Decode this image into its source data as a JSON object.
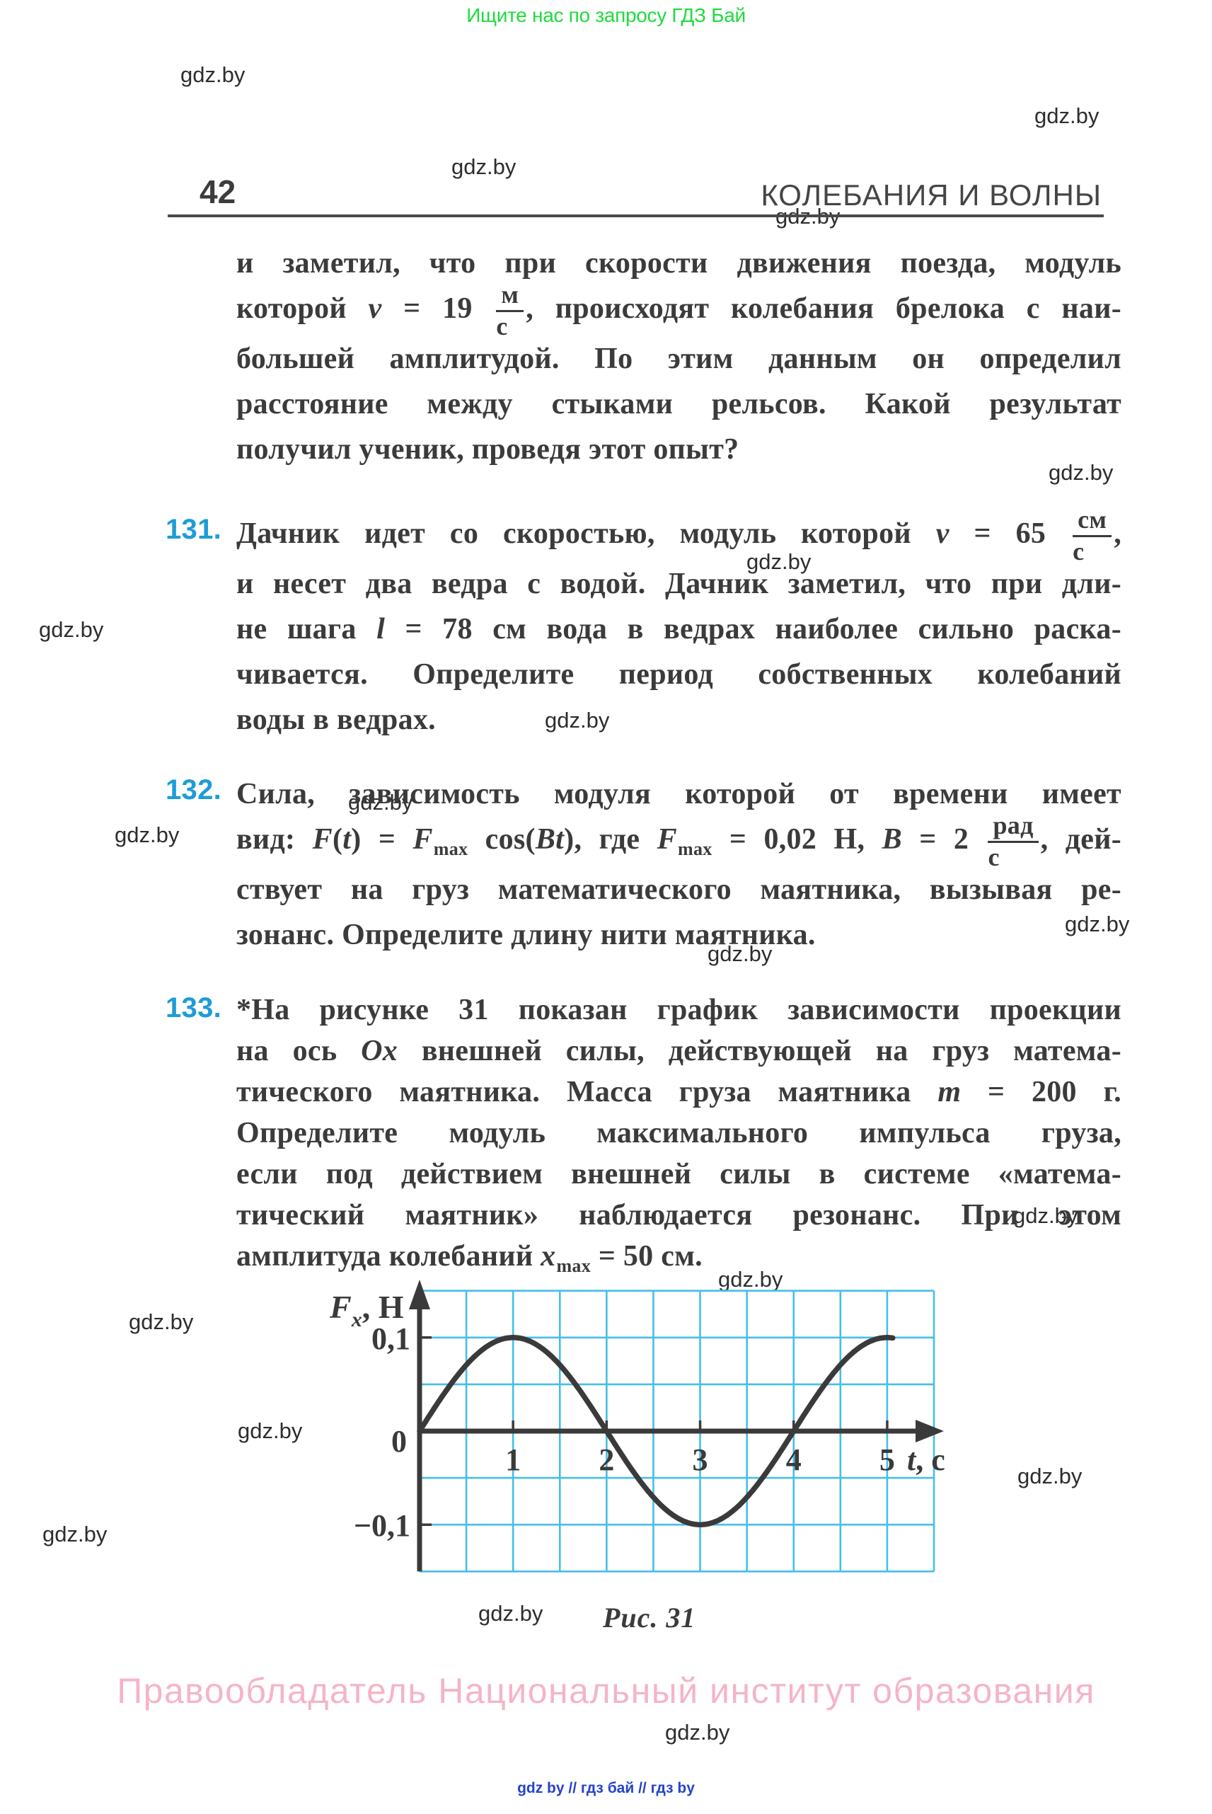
{
  "page": {
    "top_banner": "Ищите нас по запросу ГДЗ Бай",
    "page_number": "42",
    "chapter_header": "КОЛЕБАНИЯ  И ВОЛНЫ",
    "figure_caption": "Рис. 31",
    "footer_copyright": "Правообладатель Национальный институт образования",
    "footer_links": "gdz by  //  гдз бай  //  гдз by"
  },
  "watermark": {
    "text": "gdz.by"
  },
  "colors": {
    "ink": "#3b3b3b",
    "problem_number_blue": "#1e9cd8",
    "banner_green": "#1fdb3d",
    "footer_pink": "#f4b5c6",
    "links_blue": "#2443cc",
    "grid_cyan": "#45bfe8",
    "axis_dark": "#3a3a3a"
  },
  "paragraphs": [
    {
      "number": "",
      "lines": [
        [
          {
            "t": "и заметил, что при скорости движения поезда, модуль"
          }
        ],
        [
          {
            "t": "которой "
          },
          {
            "i": "v"
          },
          {
            "t": " = 19 "
          },
          {
            "frac": [
              "м",
              "с"
            ]
          },
          {
            "t": ", происходят колебания брелока с наи-"
          }
        ],
        [
          {
            "t": "большей амплитудой. По этим данным он определил"
          }
        ],
        [
          {
            "t": "расстояние между стыками рельсов. Какой результат"
          }
        ],
        [
          {
            "t": "получил ученик, проведя этот опыт?"
          }
        ]
      ]
    },
    {
      "number": "131.",
      "lines": [
        [
          {
            "t": "Дачник идет со скоростью, модуль которой "
          },
          {
            "i": "v"
          },
          {
            "t": " = 65 "
          },
          {
            "frac": [
              "см",
              "с"
            ]
          },
          {
            "t": ","
          }
        ],
        [
          {
            "t": "и несет два ведра с водой. Дачник заметил, что при дли-"
          }
        ],
        [
          {
            "t": "не шага "
          },
          {
            "i": "l"
          },
          {
            "t": " = 78 см вода в ведрах наиболее сильно раска-"
          }
        ],
        [
          {
            "t": "чивается. Определите период собственных колебаний"
          }
        ],
        [
          {
            "t": "воды в ведрах."
          }
        ]
      ]
    },
    {
      "number": "132.",
      "lines": [
        [
          {
            "t": "Сила, зависимость модуля которой от времени имеет"
          }
        ],
        [
          {
            "t": "вид: "
          },
          {
            "i": "F"
          },
          {
            "t": "("
          },
          {
            "i": "t"
          },
          {
            "t": ") = "
          },
          {
            "i": "F"
          },
          {
            "sub": "max"
          },
          {
            "t": " cos("
          },
          {
            "i": "Bt"
          },
          {
            "t": "), где "
          },
          {
            "i": "F"
          },
          {
            "sub": "max"
          },
          {
            "t": " = 0,02 Н, "
          },
          {
            "i": "B"
          },
          {
            "t": " = 2 "
          },
          {
            "frac": [
              "рад",
              "с"
            ]
          },
          {
            "t": ", дей-"
          }
        ],
        [
          {
            "t": "ствует на груз математического маятника, вызывая ре-"
          }
        ],
        [
          {
            "t": "зонанс. Определите длину нити маятника."
          }
        ]
      ]
    },
    {
      "number": "133.",
      "lines": [
        [
          {
            "t": "*На рисунке 31 показан график зависимости проекции"
          }
        ],
        [
          {
            "t": "на ось "
          },
          {
            "i": "Ox"
          },
          {
            "t": " внешней силы, действующей на груз матема-"
          }
        ],
        [
          {
            "t": "тического маятника. Масса груза маятника "
          },
          {
            "i": "m"
          },
          {
            "t": " = 200 г."
          }
        ],
        [
          {
            "t": "Определите модуль максимального импульса груза,"
          }
        ],
        [
          {
            "t": "если под действием внешней силы в системе «матема-"
          }
        ],
        [
          {
            "t": "тический маятник» наблюдается резонанс. При этом"
          }
        ],
        [
          {
            "t": "амплитуда колебаний "
          },
          {
            "i": "x"
          },
          {
            "sub": "max"
          },
          {
            "t": " = 50 см."
          }
        ]
      ]
    }
  ],
  "chart_data": {
    "type": "line",
    "title": "Рис. 31",
    "ylabel_var": "F",
    "ylabel_sub": "x",
    "ylabel_unit": ", Н",
    "xlabel_var": "t",
    "xlabel_unit": ", с",
    "xlim": [
      0,
      5.5
    ],
    "ylim": [
      -0.15,
      0.15
    ],
    "grid": true,
    "grid_step": {
      "x": 0.5,
      "y": 0.05
    },
    "x_ticks": [
      {
        "v": 1,
        "label": "1"
      },
      {
        "v": 2,
        "label": "2"
      },
      {
        "v": 3,
        "label": "3"
      },
      {
        "v": 4,
        "label": "4"
      },
      {
        "v": 5,
        "label": "5"
      }
    ],
    "y_ticks": [
      {
        "v": 0.1,
        "label": "0,1"
      },
      {
        "v": 0,
        "label": "0"
      },
      {
        "v": -0.1,
        "label": "−0,1"
      }
    ],
    "legend": "none",
    "series": [
      {
        "name": "Fx(t)",
        "model": "F = 0.1·sin(2πt/4)",
        "amplitude": 0.1,
        "period": 4,
        "phase": 0,
        "t_start": 0,
        "t_end": 5.06,
        "points": [
          [
            0,
            0
          ],
          [
            1,
            0.1
          ],
          [
            2,
            0
          ],
          [
            3,
            -0.1
          ],
          [
            4,
            0
          ],
          [
            5,
            0.1
          ]
        ]
      }
    ]
  }
}
